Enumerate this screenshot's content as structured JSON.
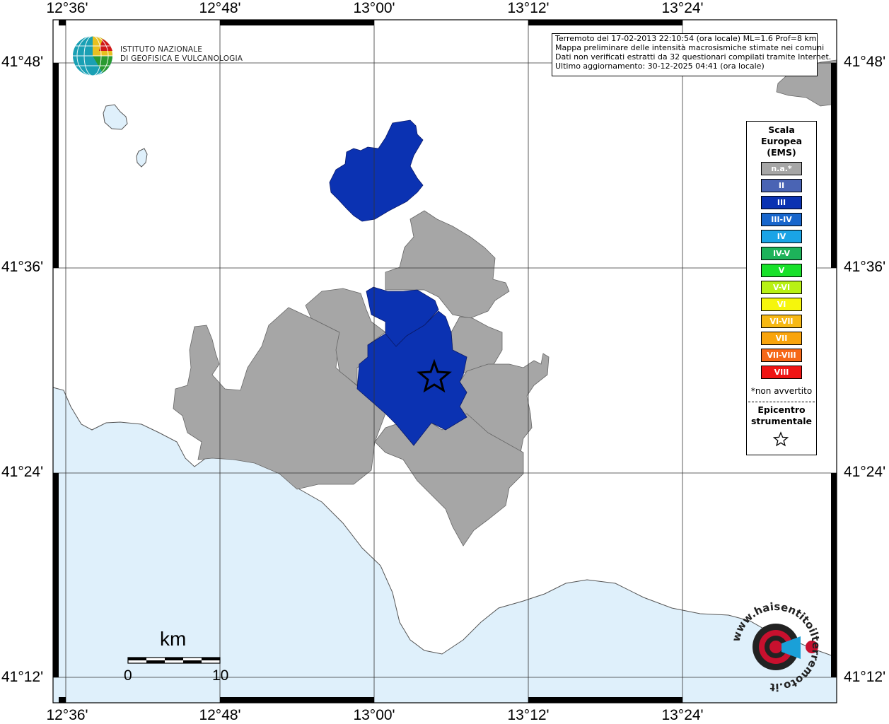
{
  "map": {
    "lon_labels": [
      "12°36'",
      "12°48'",
      "13°00'",
      "13°12'",
      "13°24'"
    ],
    "lat_labels": [
      "41°48'",
      "41°36'",
      "41°24'",
      "41°12'"
    ],
    "colors": {
      "sea": "#dff0fb",
      "land_na": "#a6a6a6",
      "intensity_iii": "#0b32b2",
      "background": "#ffffff"
    }
  },
  "info": {
    "line1": "Terremoto del 17-02-2013 22:10:54 (ora locale) ML=1.6 Prof=8 km",
    "line2": "Mappa preliminare delle intensità macrosismiche stimate nei comuni",
    "line3": "Dati non verificati estratti da 32 questionari compilati tramite Internet.",
    "line4": "Ultimo aggiornamento: 30-12-2025 04:41 (ora locale)"
  },
  "institute": {
    "line1": "ISTITUTO NAZIONALE",
    "line2": "DI GEOFISICA E VULCANOLOGIA"
  },
  "legend": {
    "title1": "Scala",
    "title2": "Europea",
    "title3": "(EMS)",
    "items": [
      {
        "label": "n.a.*",
        "color": "#a6a6a6"
      },
      {
        "label": "II",
        "color": "#4a64b4"
      },
      {
        "label": "III",
        "color": "#0b32b2"
      },
      {
        "label": "III-IV",
        "color": "#1866cc"
      },
      {
        "label": "IV",
        "color": "#1aa4e6"
      },
      {
        "label": "IV-V",
        "color": "#1db35a"
      },
      {
        "label": "V",
        "color": "#18e12a"
      },
      {
        "label": "V-VI",
        "color": "#b8f114"
      },
      {
        "label": "VI",
        "color": "#f6f60c"
      },
      {
        "label": "VI-VII",
        "color": "#f6b814"
      },
      {
        "label": "VII",
        "color": "#f9a40c"
      },
      {
        "label": "VII-VIII",
        "color": "#f66818"
      },
      {
        "label": "VIII",
        "color": "#f01414"
      }
    ],
    "note": "*non avvertito",
    "epicenter1": "Epicentro",
    "epicenter2": "strumentale"
  },
  "scale": {
    "unit": "km",
    "start": "0",
    "end": "10"
  },
  "brand": {
    "text": "www.haisentitoilterremoto.it"
  }
}
